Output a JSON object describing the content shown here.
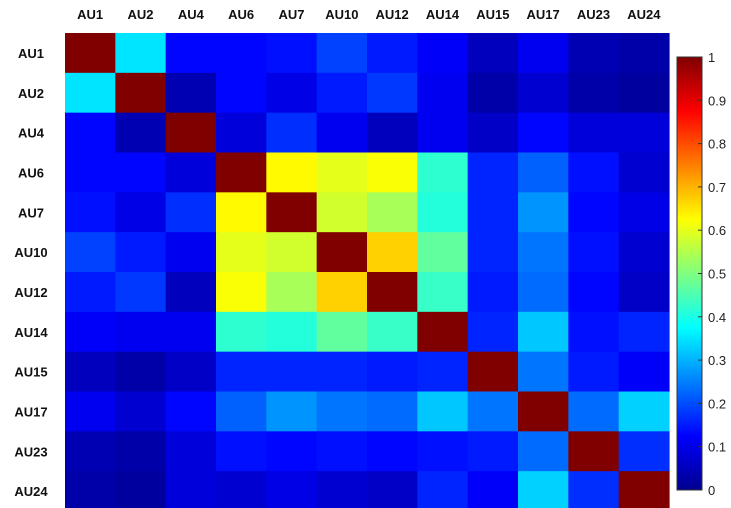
{
  "chart_data": {
    "type": "heatmap",
    "title": "",
    "xlabel": "",
    "ylabel": "",
    "x_categories": [
      "AU1",
      "AU2",
      "AU4",
      "AU6",
      "AU7",
      "AU10",
      "AU12",
      "AU14",
      "AU15",
      "AU17",
      "AU23",
      "AU24"
    ],
    "y_categories": [
      "AU1",
      "AU2",
      "AU4",
      "AU6",
      "AU7",
      "AU10",
      "AU12",
      "AU14",
      "AU15",
      "AU17",
      "AU23",
      "AU24"
    ],
    "matrix": [
      [
        1.0,
        0.35,
        0.13,
        0.13,
        0.14,
        0.19,
        0.15,
        0.12,
        0.06,
        0.11,
        0.05,
        0.04
      ],
      [
        0.35,
        1.0,
        0.05,
        0.13,
        0.1,
        0.15,
        0.18,
        0.11,
        0.04,
        0.08,
        0.04,
        0.03
      ],
      [
        0.13,
        0.05,
        1.0,
        0.09,
        0.17,
        0.11,
        0.06,
        0.11,
        0.07,
        0.13,
        0.09,
        0.09
      ],
      [
        0.13,
        0.13,
        0.09,
        1.0,
        0.63,
        0.6,
        0.62,
        0.42,
        0.16,
        0.22,
        0.14,
        0.08
      ],
      [
        0.14,
        0.1,
        0.17,
        0.63,
        1.0,
        0.58,
        0.54,
        0.41,
        0.16,
        0.27,
        0.13,
        0.1
      ],
      [
        0.19,
        0.15,
        0.11,
        0.6,
        0.58,
        1.0,
        0.67,
        0.47,
        0.16,
        0.24,
        0.14,
        0.08
      ],
      [
        0.15,
        0.18,
        0.06,
        0.62,
        0.54,
        0.67,
        1.0,
        0.43,
        0.15,
        0.23,
        0.13,
        0.07
      ],
      [
        0.12,
        0.11,
        0.11,
        0.42,
        0.41,
        0.47,
        0.43,
        1.0,
        0.16,
        0.32,
        0.14,
        0.16
      ],
      [
        0.06,
        0.04,
        0.07,
        0.16,
        0.16,
        0.16,
        0.15,
        0.16,
        1.0,
        0.24,
        0.15,
        0.12
      ],
      [
        0.11,
        0.08,
        0.13,
        0.22,
        0.27,
        0.24,
        0.23,
        0.32,
        0.24,
        1.0,
        0.23,
        0.33
      ],
      [
        0.05,
        0.04,
        0.09,
        0.14,
        0.13,
        0.14,
        0.13,
        0.14,
        0.15,
        0.23,
        1.0,
        0.17
      ],
      [
        0.04,
        0.03,
        0.09,
        0.08,
        0.1,
        0.08,
        0.07,
        0.16,
        0.12,
        0.33,
        0.17,
        1.0
      ]
    ],
    "colormap": "jet",
    "colorbar": {
      "range": [
        0,
        1
      ],
      "ticks": [
        0,
        0.1,
        0.2,
        0.3,
        0.4,
        0.5,
        0.6,
        0.7,
        0.8,
        0.9,
        1
      ],
      "tick_labels": [
        "0",
        "0.1",
        "0.2",
        "0.3",
        "0.4",
        "0.5",
        "0.6",
        "0.7",
        "0.8",
        "0.9",
        "1"
      ],
      "placement": "right"
    },
    "x_axis_position": "top",
    "grid": false
  }
}
